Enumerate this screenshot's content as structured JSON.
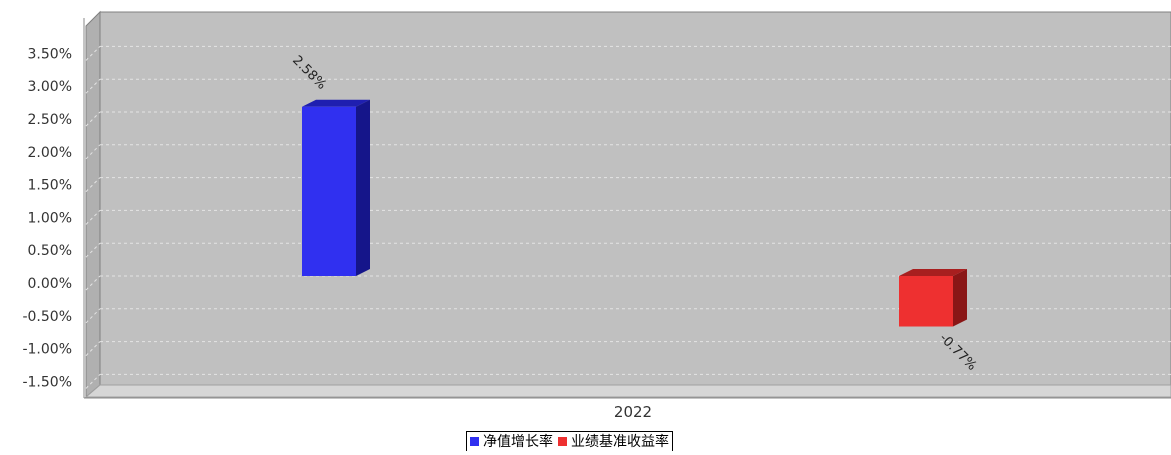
{
  "chart_data": {
    "type": "bar",
    "categories": [
      "2022"
    ],
    "series": [
      {
        "name": "净值增长率",
        "values": [
          2.58
        ],
        "color": "#3030f0",
        "label": "2.58%"
      },
      {
        "name": "业绩基准收益率",
        "values": [
          -0.77
        ],
        "color": "#ee3030",
        "label": "-0.77%"
      }
    ],
    "yticks": [
      "3.50%",
      "3.00%",
      "2.50%",
      "2.00%",
      "1.50%",
      "1.00%",
      "0.50%",
      "0.00%",
      "-0.50%",
      "-1.00%",
      "-1.50%"
    ],
    "ylim": [
      -1.7,
      3.7
    ],
    "grid": true,
    "legend_position": "bottom-center",
    "plot_background": "#c0c0c0"
  }
}
